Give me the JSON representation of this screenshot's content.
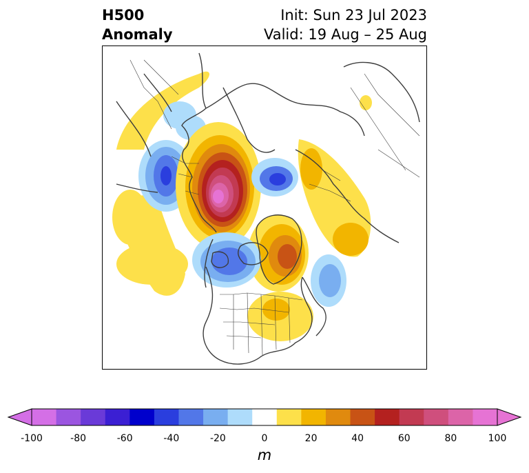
{
  "title": {
    "left_line1": "H500",
    "left_line2": "Anomaly",
    "right_line1": "Init: Sun 23 Jul 2023",
    "right_line2": "Valid: 19 Aug – 25 Aug"
  },
  "colorbar": {
    "unit": "m",
    "ticks": [
      "-100",
      "-80",
      "-60",
      "-40",
      "-20",
      "0",
      "20",
      "40",
      "60",
      "80",
      "100"
    ],
    "levels": [
      -100,
      -90,
      -80,
      -70,
      -60,
      -50,
      -40,
      -30,
      -20,
      -10,
      10,
      20,
      30,
      40,
      50,
      60,
      70,
      80,
      90,
      100
    ],
    "colors": [
      "#d46fe6",
      "#9b55e0",
      "#6a3ad8",
      "#3b1fd3",
      "#0000cc",
      "#2a3ede",
      "#5277e8",
      "#79aef0",
      "#aedcfb",
      "#ffffff",
      "#fde04a",
      "#f2b500",
      "#e08a0e",
      "#c85315",
      "#b4211f",
      "#c23a52",
      "#cf4f7d",
      "#dc64a8",
      "#e673d4"
    ],
    "extend_low_color": "#d46fe6",
    "extend_high_color": "#e673d4"
  },
  "map": {
    "projection": "polar stereographic (north)",
    "anomaly_centers": [
      {
        "region": "Gulf of Alaska",
        "sign": "negative",
        "peak": -50
      },
      {
        "region": "East Siberia / Arctic",
        "sign": "positive",
        "peak": 100
      },
      {
        "region": "Kara Sea",
        "sign": "negative",
        "peak": -40
      },
      {
        "region": "Central Siberia",
        "sign": "positive",
        "peak": 30
      },
      {
        "region": "Greenland",
        "sign": "positive",
        "peak": 60
      },
      {
        "region": "Scandinavia / North Atlantic",
        "sign": "negative",
        "peak": -40
      },
      {
        "region": "Central Asia",
        "sign": "negative",
        "peak": -30
      },
      {
        "region": "Western Europe",
        "sign": "negative",
        "peak": -30
      },
      {
        "region": "Central Canada",
        "sign": "positive",
        "peak": 30
      }
    ]
  }
}
